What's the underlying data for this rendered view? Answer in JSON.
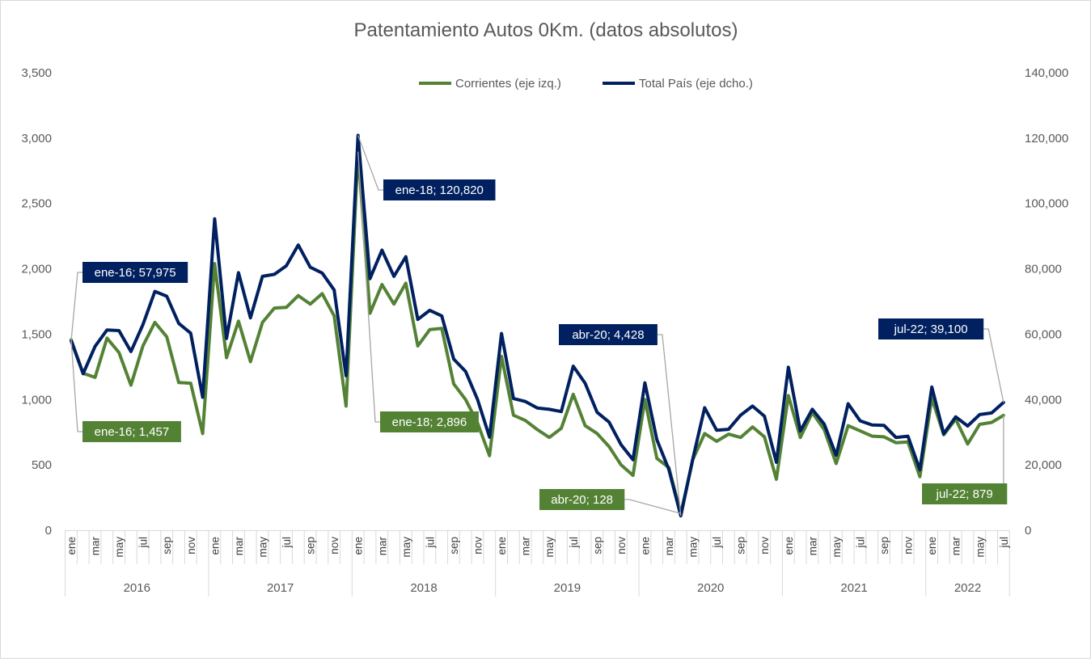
{
  "chart_data": {
    "type": "line",
    "title": "Patentamiento Autos 0Km. (datos absolutos)",
    "y_left": {
      "lim": [
        0,
        3500
      ],
      "ticks": [
        "0",
        "500",
        "1,000",
        "1,500",
        "2,000",
        "2,500",
        "3,000",
        "3,500"
      ]
    },
    "y_right": {
      "lim": [
        0,
        140000
      ],
      "ticks": [
        "0",
        "20,000",
        "40,000",
        "60,000",
        "80,000",
        "100,000",
        "120,000",
        "140,000"
      ]
    },
    "years": [
      "2016",
      "2017",
      "2018",
      "2019",
      "2020",
      "2021",
      "2022"
    ],
    "month_labels": [
      "ene",
      "",
      "mar",
      "",
      "may",
      "",
      "jul",
      "",
      "sep",
      "",
      "nov",
      ""
    ],
    "legend_position": "top-center",
    "colors": {
      "green": "#548235",
      "navy": "#002060",
      "axis": "#d9d9d9",
      "leader": "#a6a6a6"
    },
    "series": [
      {
        "name": "Corrientes (eje izq.)",
        "axis": "left",
        "color": "#548235",
        "values": [
          1457,
          1200,
          1170,
          1470,
          1360,
          1110,
          1410,
          1590,
          1480,
          1130,
          1125,
          740,
          2040,
          1320,
          1600,
          1290,
          1590,
          1700,
          1705,
          1795,
          1730,
          1810,
          1640,
          950,
          2896,
          1660,
          1880,
          1730,
          1890,
          1410,
          1535,
          1545,
          1120,
          1000,
          820,
          570,
          1330,
          880,
          840,
          770,
          710,
          780,
          1040,
          800,
          740,
          640,
          500,
          420,
          1000,
          550,
          480,
          128,
          540,
          740,
          680,
          735,
          710,
          790,
          715,
          390,
          1030,
          710,
          900,
          770,
          510,
          800,
          760,
          720,
          715,
          670,
          675,
          410,
          1010,
          730,
          850,
          660,
          810,
          825,
          879
        ]
      },
      {
        "name": "Total País (eje dcho.)",
        "axis": "right",
        "color": "#002060",
        "values": [
          57975,
          47900,
          56300,
          61300,
          61100,
          54700,
          62900,
          73100,
          71600,
          63300,
          60300,
          40700,
          95300,
          58700,
          78800,
          65000,
          77700,
          78300,
          80900,
          87300,
          80500,
          78700,
          73500,
          47300,
          120820,
          77000,
          85700,
          77700,
          83700,
          64500,
          67300,
          65600,
          52400,
          48600,
          40000,
          28500,
          60200,
          40300,
          39400,
          37400,
          37000,
          36300,
          50200,
          45000,
          36100,
          33100,
          26200,
          21600,
          45100,
          27700,
          18600,
          4428,
          21800,
          37500,
          30600,
          30900,
          35200,
          38000,
          34900,
          20800,
          49900,
          30400,
          37000,
          32500,
          22900,
          38700,
          33500,
          32200,
          32100,
          28400,
          28800,
          18500,
          43800,
          29500,
          34700,
          31900,
          35400,
          35900,
          39100
        ]
      }
    ],
    "callouts": [
      {
        "text": "ene-16; 57,975",
        "series": 1,
        "index": 0
      },
      {
        "text": "ene-16; 1,457",
        "series": 0,
        "index": 0
      },
      {
        "text": "ene-18; 120,820",
        "series": 1,
        "index": 24
      },
      {
        "text": "ene-18; 2,896",
        "series": 0,
        "index": 24
      },
      {
        "text": "abr-20; 4,428",
        "series": 1,
        "index": 51
      },
      {
        "text": "abr-20; 128",
        "series": 0,
        "index": 51
      },
      {
        "text": "jul-22; 39,100",
        "series": 1,
        "index": 78
      },
      {
        "text": "jul-22; 879",
        "series": 0,
        "index": 78
      }
    ]
  }
}
